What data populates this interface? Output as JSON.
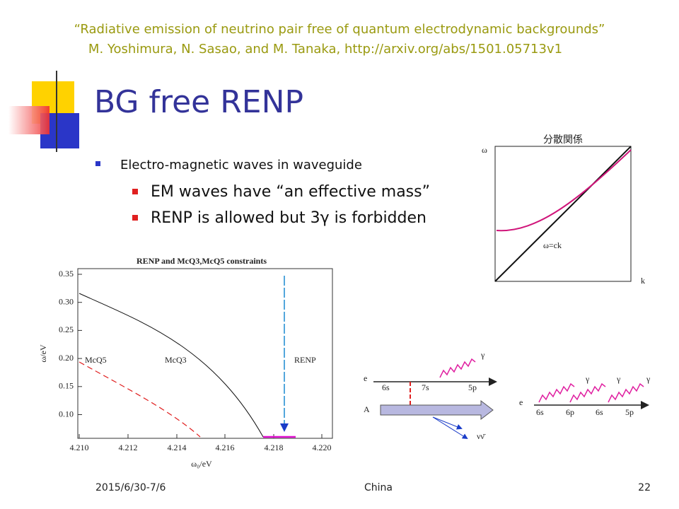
{
  "citation": {
    "title": "“Radiative emission of neutrino pair free of quantum electrodynamic backgrounds”",
    "authors": "M. Yoshimura, N. Sasao, and M. Tanaka, http://arxiv.org/abs/1501.05713v1"
  },
  "slide_title": "BG free RENP",
  "bullets": {
    "main": "Electro-magnetic waves in waveguide",
    "sub": [
      "EM waves have “an effective mass”",
      "RENP is allowed but 3γ is forbidden"
    ]
  },
  "dispersion": {
    "title": "分散関係",
    "y_label": "ω",
    "x_label": "k",
    "line_label": "ω=ck"
  },
  "constraints_plot": {
    "title": "RENP and McQ3,McQ5 constraints",
    "x_label": "ω₀/eV",
    "y_label": "ω/eV",
    "xticks": [
      "4.210",
      "4.212",
      "4.214",
      "4.216",
      "4.218",
      "4.220"
    ],
    "yticks": [
      "0.35",
      "0.30",
      "0.25",
      "0.20",
      "0.15",
      "0.10"
    ],
    "curve_labels": [
      "McQ5",
      "McQ3",
      "RENP"
    ]
  },
  "diagram_left": {
    "electron": "e",
    "levels": [
      "6s",
      "7s",
      "5p"
    ],
    "field": "A",
    "photon": "γ",
    "neutrinos": "νν̄"
  },
  "diagram_right": {
    "electron": "e",
    "levels": [
      "6s",
      "6p",
      "6s",
      "5p"
    ],
    "photons": [
      "γ",
      "γ",
      "γ"
    ]
  },
  "footer": {
    "date": "2015/6/30-7/6",
    "place": "China",
    "page": "22"
  }
}
